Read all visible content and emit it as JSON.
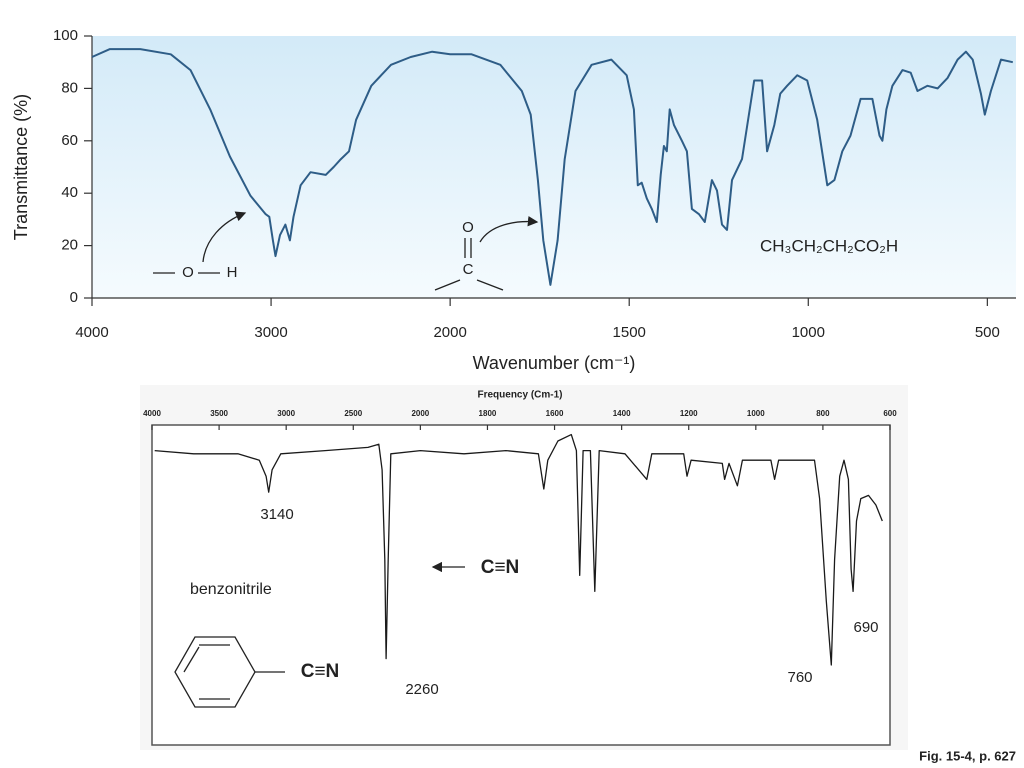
{
  "chart_data": [
    {
      "type": "line",
      "xlabel": "Wavenumber (cm⁻¹)",
      "ylabel": "Transmittance (%)",
      "x": [
        4000,
        3900,
        3730,
        3560,
        3450,
        3340,
        3230,
        3115,
        3030,
        3010,
        2990,
        2975,
        2950,
        2920,
        2895,
        2875,
        2835,
        2780,
        2695,
        2650,
        2610,
        2565,
        2525,
        2440,
        2330,
        2220,
        2100,
        2000,
        1940,
        1860,
        1800,
        1775,
        1755,
        1740,
        1720,
        1700,
        1680,
        1650,
        1605,
        1550,
        1507,
        1487,
        1476,
        1465,
        1451,
        1437,
        1423,
        1412,
        1403,
        1395,
        1387,
        1375,
        1353,
        1339,
        1325,
        1305,
        1289,
        1269,
        1255,
        1241,
        1227,
        1213,
        1185,
        1151,
        1129,
        1115,
        1095,
        1078,
        1059,
        1031,
        1003,
        975,
        947,
        927,
        905,
        882,
        854,
        821,
        801,
        793,
        782,
        765,
        737,
        714,
        695,
        667,
        639,
        611,
        583,
        560,
        541,
        518,
        507,
        490,
        462,
        429
      ],
      "series": [
        {
          "color": "#2e5d87",
          "values": [
            92,
            95,
            95,
            93,
            87,
            72,
            54,
            39,
            32,
            31,
            22,
            16,
            24,
            28,
            22,
            31,
            43,
            48,
            47,
            50,
            53,
            56,
            68,
            81,
            89,
            92,
            94,
            93,
            93,
            89,
            79,
            70,
            45,
            22,
            5,
            22,
            53,
            79,
            89,
            91,
            85,
            72,
            43,
            44,
            38,
            34,
            29,
            47,
            58,
            56,
            72,
            66,
            60,
            56,
            34,
            32,
            29,
            45,
            41,
            28,
            26,
            45,
            53,
            83,
            83,
            56,
            66,
            78,
            81,
            85,
            83,
            68,
            43,
            45,
            56,
            62,
            76,
            76,
            62,
            60,
            72,
            81,
            87,
            86,
            79,
            81,
            80,
            84,
            91,
            94,
            91,
            78,
            70,
            79,
            91,
            90
          ]
        }
      ],
      "xlim": [
        4000,
        420
      ],
      "xticks": [
        4000,
        3000,
        2000,
        1500,
        1000,
        500
      ],
      "ylim": [
        0,
        100
      ],
      "yticks": [
        0,
        20,
        40,
        60,
        80,
        100
      ],
      "annotations": [
        "O",
        "H",
        "O",
        "C",
        "CH₃CH₂CH₂CO₂H"
      ]
    },
    {
      "type": "line",
      "xlabel": "Frequency (Cm-1)",
      "x": [
        3980,
        3690,
        3360,
        3200,
        3150,
        3130,
        3105,
        3040,
        2710,
        2390,
        2310,
        2285,
        2265,
        2255,
        2240,
        2220,
        2000,
        1870,
        1745,
        1648,
        1632,
        1620,
        1590,
        1550,
        1535,
        1525,
        1515,
        1493,
        1480,
        1467,
        1390,
        1325,
        1310,
        1215,
        1205,
        1193,
        1100,
        1093,
        1080,
        1055,
        1040,
        955,
        944,
        932,
        825,
        810,
        790,
        775,
        765,
        750,
        737,
        724,
        716,
        710,
        700,
        687,
        664,
        642,
        623
      ],
      "series": [
        {
          "color": "#1a1a1a",
          "values": [
            92,
            91,
            91,
            89,
            84,
            79,
            86,
            91,
            92,
            93,
            94,
            86,
            58,
            27,
            58,
            91,
            92,
            91,
            92,
            91,
            80,
            89,
            95,
            97,
            92,
            53,
            92,
            92,
            48,
            92,
            91,
            83,
            91,
            91,
            84,
            89,
            88,
            83,
            88,
            81,
            89,
            89,
            83,
            89,
            89,
            77,
            45,
            25,
            58,
            84,
            89,
            83,
            55,
            48,
            70,
            77,
            78,
            75,
            70
          ]
        }
      ],
      "xlim": [
        4000,
        600
      ],
      "xticks": [
        4000,
        3500,
        3000,
        2500,
        2000,
        1800,
        1600,
        1400,
        1200,
        1000,
        800,
        600
      ],
      "ylim": [
        0,
        100
      ],
      "peak_labels": [
        3140,
        2260,
        760,
        690
      ],
      "annotations": [
        "benzonitrile",
        "C≡N",
        "C≡N"
      ]
    }
  ],
  "caption": "Fig. 15-4, p. 627"
}
